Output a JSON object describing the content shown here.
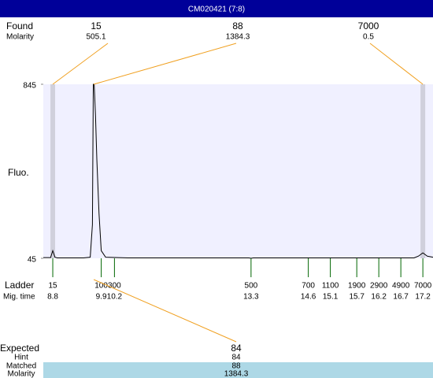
{
  "window_title": "CM020421 (7:8)",
  "chart_data": {
    "type": "line",
    "ylabel": "Fluo.",
    "xlim": [
      8.585,
      17.43
    ],
    "ylim": [
      45,
      845
    ],
    "yticks": [
      45,
      845
    ],
    "x": [
      8.585,
      8.75,
      8.8,
      8.85,
      8.9,
      9.5,
      9.65,
      9.7,
      9.72,
      9.74,
      9.77,
      9.8,
      9.85,
      9.9,
      10.0,
      10.5,
      13.25,
      13.3,
      13.35,
      17.0,
      17.1,
      17.2,
      17.3,
      17.43
    ],
    "series": [
      {
        "color": "#000000",
        "values": [
          48,
          48,
          80,
          50,
          47,
          47,
          50,
          200,
          845,
          845,
          700,
          500,
          250,
          80,
          50,
          47,
          47,
          45,
          47,
          47,
          55,
          70,
          55,
          50
        ]
      }
    ],
    "found": {
      "label": "Found",
      "molarity_label": "Molarity",
      "peaks": [
        {
          "size": 15,
          "molarity": 505.1,
          "mig_time": 8.8
        },
        {
          "size": 88,
          "molarity": 1384.3,
          "mig_time": 9.73
        },
        {
          "size": 7000,
          "molarity": 0.5,
          "mig_time": 17.2
        }
      ]
    },
    "ladder": {
      "label": "Ladder",
      "time_label": "Mig. time",
      "sizes": [
        15,
        100,
        300,
        500,
        700,
        1100,
        1900,
        2900,
        4900,
        7000
      ],
      "times": [
        8.8,
        9.9,
        10.2,
        13.3,
        14.6,
        15.1,
        15.7,
        16.2,
        16.7,
        17.2
      ]
    },
    "expected": {
      "label": "Expected",
      "value": 84,
      "hint_label": "Hint",
      "hint": 84,
      "matched_label": "Matched",
      "matched": 88,
      "molarity_label": "Molarity",
      "molarity": 1384.3
    }
  }
}
